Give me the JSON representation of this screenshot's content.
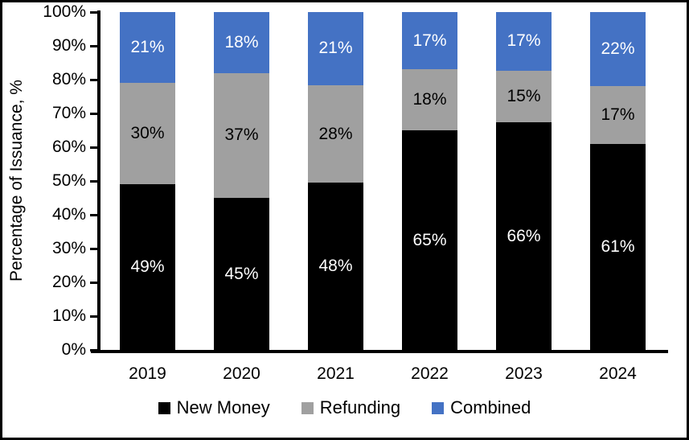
{
  "chart_data": {
    "type": "bar",
    "stacked": true,
    "title": "",
    "xlabel": "",
    "ylabel": "Percentage of Issuance, %",
    "ylim": [
      0,
      100
    ],
    "ytick_step": 10,
    "ytick_labels": [
      "0%",
      "10%",
      "20%",
      "30%",
      "40%",
      "50%",
      "60%",
      "70%",
      "80%",
      "90%",
      "100%"
    ],
    "categories": [
      "2019",
      "2020",
      "2021",
      "2022",
      "2023",
      "2024"
    ],
    "series": [
      {
        "name": "New Money",
        "color": "#000000",
        "label_color": "#ffffff",
        "values": [
          49,
          45,
          48,
          65,
          66,
          61
        ]
      },
      {
        "name": "Refunding",
        "color": "#A0A0A0",
        "label_color": "#000000",
        "values": [
          30,
          37,
          28,
          18,
          15,
          17
        ]
      },
      {
        "name": "Combined",
        "color": "#4472C4",
        "label_color": "#ffffff",
        "values": [
          21,
          18,
          21,
          17,
          17,
          22
        ]
      }
    ],
    "data_label_suffix": "%",
    "legend_position": "bottom",
    "grid": false,
    "axis_color": "#000000",
    "background_color": "#ffffff"
  }
}
